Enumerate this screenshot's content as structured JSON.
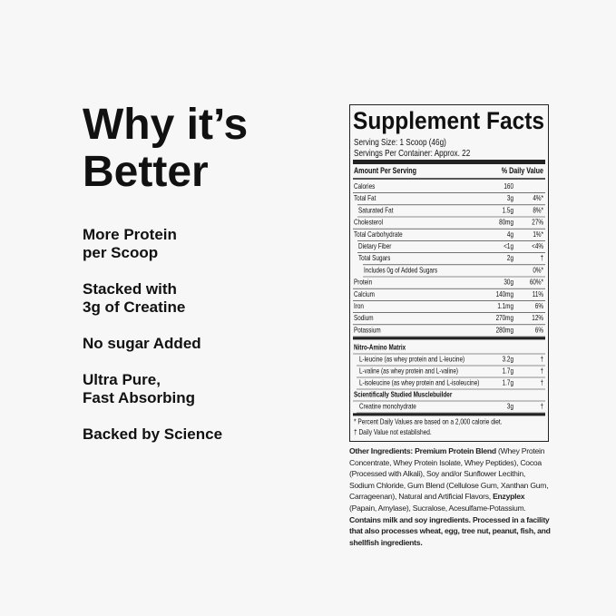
{
  "headline": [
    "Why it’s",
    "Better"
  ],
  "benefits": [
    [
      "More Protein",
      "per Scoop"
    ],
    [
      "Stacked with",
      "3g of Creatine"
    ],
    [
      "No sugar Added"
    ],
    [
      "Ultra Pure,",
      "Fast Absorbing"
    ],
    [
      "Backed by Science"
    ]
  ],
  "supplement_facts": {
    "title": "Supplement Facts",
    "serving_size": "Serving Size: 1 Scoop (46g)",
    "servings_per_container": "Servings Per Container: Approx. 22",
    "amount_header": "Amount Per Serving",
    "dv_header": "% Daily Value",
    "nutrients": [
      {
        "name": "Calories",
        "amount": "160"
      },
      {
        "name": "Total Fat",
        "amount": "3g",
        "dv": "4%*",
        "sub": [
          {
            "name": "Saturated Fat",
            "amount": "1.5g",
            "dv": "8%*"
          }
        ]
      },
      {
        "name": "Cholesterol",
        "amount": "80mg",
        "dv": "27%"
      },
      {
        "name": "Total Carbohydrate",
        "amount": "4g",
        "dv": "1%*",
        "sub": [
          {
            "name": "Dietary Fiber",
            "amount": "<1g",
            "dv": "<4%"
          },
          {
            "name": "Total Sugars",
            "amount": "2g",
            "dv": "†",
            "sub": [
              {
                "name": "Includes 0g of Added Sugars",
                "dv": "0%*"
              }
            ]
          }
        ]
      },
      {
        "name": "Protein",
        "amount": "30g",
        "dv": "60%*"
      },
      {
        "name": "Calcium",
        "amount": "140mg",
        "dv": "11%"
      },
      {
        "name": "Iron",
        "amount": "1.1mg",
        "dv": "6%"
      },
      {
        "name": "Sodium",
        "amount": "270mg",
        "dv": "12%"
      },
      {
        "name": "Potassium",
        "amount": "280mg",
        "dv": "6%"
      }
    ],
    "blends": [
      {
        "title": "Nitro-Amino Matrix",
        "items": [
          {
            "name": "L-leucine (as whey protein and L-leucine)",
            "amount": "3.2g",
            "dv": "†"
          },
          {
            "name": "L-valine (as whey protein and L-valine)",
            "amount": "1.7g",
            "dv": "†"
          },
          {
            "name": "L-isoleucine (as whey protein and L-isoleucine)",
            "amount": "1.7g",
            "dv": "†"
          }
        ]
      },
      {
        "title": "Scientifically Studied Musclebuilder",
        "items": [
          {
            "name": "Creatine monohydrate",
            "amount": "3g",
            "dv": "†"
          }
        ]
      }
    ],
    "footnotes": [
      "* Percent Daily Values are based on a 2,000 calorie diet.",
      "† Daily Value not established."
    ]
  },
  "other_ingredients": [
    {
      "text": "Other Ingredients: Premium Protein Blend",
      "bold": true
    },
    {
      "text": " (Whey Protein Concentrate, Whey Protein Isolate, Whey Peptides), Cocoa (Processed with Alkali), Soy and/or Sunflower Lecithin, Sodium Chloride, Gum Blend (Cellulose Gum, Xanthan Gum, Carrageenan), Natural and Artificial Flavors, ",
      "bold": false
    },
    {
      "text": "Enzyplex",
      "bold": true
    },
    {
      "text": " (Papain, Amylase), Sucralose, Acesulfame-Potassium. ",
      "bold": false
    },
    {
      "text": "Contains milk and soy ingredients. Processed in a facility that also processes wheat, egg, tree nut, peanut, fish, and shellfish ingredients.",
      "bold": true
    }
  ]
}
